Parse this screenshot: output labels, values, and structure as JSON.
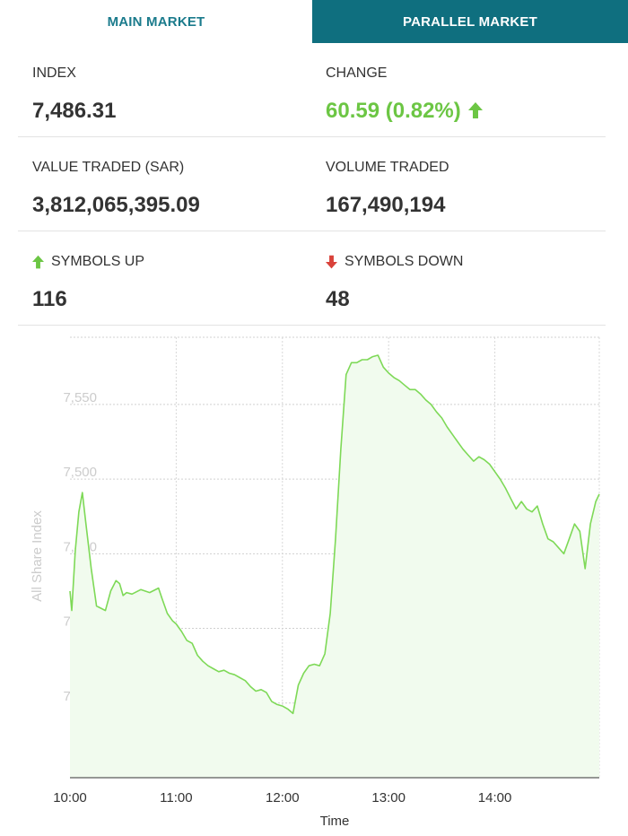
{
  "tabs": {
    "main": "MAIN MARKET",
    "parallel": "PARALLEL MARKET"
  },
  "stats": {
    "index_label": "INDEX",
    "index_value": "7,486.31",
    "change_label": "CHANGE",
    "change_value": "60.59 (0.82%)",
    "value_traded_label": "VALUE TRADED (SAR)",
    "value_traded_value": "3,812,065,395.09",
    "volume_traded_label": "VOLUME TRADED",
    "volume_traded_value": "167,490,194",
    "symbols_up_label": "SYMBOLS UP",
    "symbols_up_value": "116",
    "symbols_down_label": "SYMBOLS DOWN",
    "symbols_down_value": "48"
  },
  "colors": {
    "accent": "#0f6f7f",
    "up": "#6cc644",
    "down": "#d9423a",
    "line": "#7ed957",
    "fill": "#f1fbee"
  },
  "icons": {
    "change": "arrow-up-icon",
    "symbols_up": "arrow-up-icon",
    "symbols_down": "arrow-down-icon"
  },
  "chart_data": {
    "type": "area",
    "xlabel": "Time",
    "ylabel": "All Share Index",
    "xlim": [
      "10:00",
      "14:59"
    ],
    "ylim": [
      7300,
      7595
    ],
    "xticks": [
      "10:00",
      "11:00",
      "12:00",
      "13:00",
      "14:00"
    ],
    "yticks": [
      7350,
      7400,
      7450,
      7500,
      7550
    ],
    "ytick_labels": [
      "7,350",
      "7,400",
      "7,450",
      "7,500",
      "7,550"
    ],
    "grid": true,
    "series": [
      {
        "x": [
          "10:00",
          "10:01",
          "10:03",
          "10:05",
          "10:07",
          "10:09",
          "10:12",
          "10:15",
          "10:20",
          "10:23",
          "10:26",
          "10:28",
          "10:30",
          "10:32",
          "10:35",
          "10:40",
          "10:45",
          "10:50",
          "10:52",
          "10:55",
          "10:58",
          "11:00",
          "11:03",
          "11:06",
          "11:09",
          "11:12",
          "11:15",
          "11:18",
          "11:21",
          "11:24",
          "11:27",
          "11:30",
          "11:33",
          "11:36",
          "11:39",
          "11:42",
          "11:45",
          "11:48",
          "11:51",
          "11:54",
          "11:57",
          "12:00",
          "12:03",
          "12:06",
          "12:09",
          "12:12",
          "12:15",
          "12:18",
          "12:21",
          "12:24",
          "12:27",
          "12:30",
          "12:33",
          "12:36",
          "12:39",
          "12:42",
          "12:45",
          "12:48",
          "12:51",
          "12:54",
          "12:57",
          "13:00",
          "13:03",
          "13:06",
          "13:09",
          "13:12",
          "13:15",
          "13:18",
          "13:21",
          "13:24",
          "13:27",
          "13:30",
          "13:33",
          "13:36",
          "13:39",
          "13:42",
          "13:45",
          "13:48",
          "13:51",
          "13:54",
          "13:57",
          "14:00",
          "14:03",
          "14:06",
          "14:09",
          "14:12",
          "14:15",
          "14:18",
          "14:21",
          "14:24",
          "14:27",
          "14:30",
          "14:33",
          "14:36",
          "14:39",
          "14:42",
          "14:45",
          "14:48",
          "14:51",
          "14:54",
          "14:57",
          "14:59"
        ],
        "values": [
          7425,
          7412,
          7452,
          7478,
          7491,
          7470,
          7440,
          7415,
          7412,
          7425,
          7432,
          7430,
          7422,
          7424,
          7423,
          7426,
          7424,
          7427,
          7420,
          7410,
          7405,
          7403,
          7398,
          7392,
          7390,
          7382,
          7378,
          7375,
          7373,
          7371,
          7372,
          7370,
          7369,
          7367,
          7365,
          7361,
          7358,
          7359,
          7357,
          7351,
          7349,
          7348,
          7346,
          7343,
          7362,
          7370,
          7375,
          7376,
          7375,
          7383,
          7410,
          7460,
          7520,
          7570,
          7578,
          7578,
          7580,
          7580,
          7582,
          7583,
          7575,
          7571,
          7568,
          7566,
          7563,
          7560,
          7560,
          7557,
          7553,
          7550,
          7545,
          7541,
          7535,
          7530,
          7525,
          7520,
          7516,
          7512,
          7515,
          7513,
          7510,
          7505,
          7500,
          7494,
          7487,
          7480,
          7485,
          7480,
          7478,
          7482,
          7470,
          7460,
          7458,
          7454,
          7450,
          7460,
          7470,
          7465,
          7440,
          7470,
          7485,
          7490
        ]
      }
    ]
  }
}
